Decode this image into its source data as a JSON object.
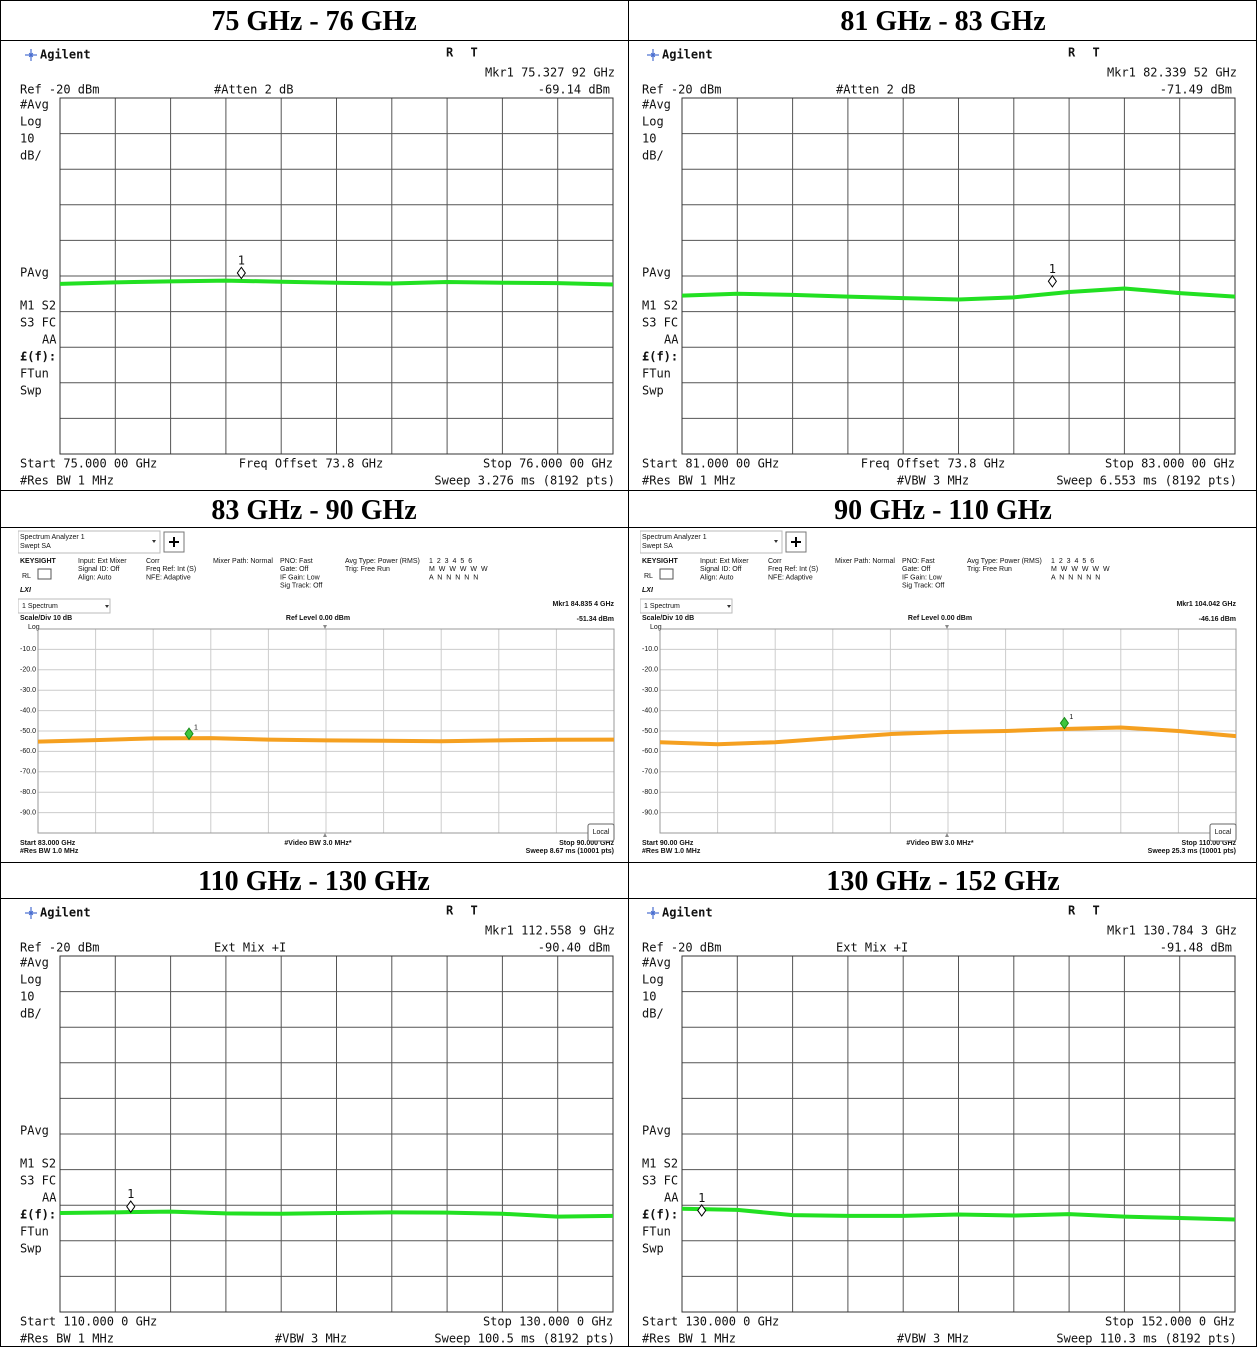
{
  "panels": [
    {
      "title": "75 GHz - 76 GHz",
      "style": "agilent",
      "header": {
        "brand": "Agilent",
        "status": "R T",
        "marker": "Mkr1 75.327 92 GHz",
        "ref": "Ref -20 dBm",
        "setting": "#Atten 2 dB",
        "marker_level": "-69.14 dBm"
      },
      "side_labels": [
        "#Avg",
        "Log",
        "10",
        "dB/",
        "PAvg",
        "M1 S2",
        "S3 FC",
        "AA",
        "£(f):",
        "FTun",
        "Swp"
      ],
      "footer": {
        "start": "Start 75.000 00 GHz",
        "center": "Freq Offset 73.8 GHz",
        "stop": "Stop 76.000 00 GHz",
        "rbw": "#Res BW 1 MHz",
        "sweep": "Sweep 3.276 ms (8192 pts)"
      },
      "xlim": [
        75,
        76
      ],
      "ylim": [
        -120,
        -20
      ],
      "yticks": [
        -30,
        -40,
        -50,
        -60,
        -70,
        -80,
        -90,
        -100,
        -110
      ],
      "trace_color": "#22e022",
      "trace": {
        "x": [
          75,
          75.1,
          75.2,
          75.3,
          75.4,
          75.5,
          75.6,
          75.7,
          75.8,
          75.9,
          76
        ],
        "values": [
          -72.2,
          -71.8,
          -71.5,
          -71.3,
          -71.6,
          -71.9,
          -72.1,
          -71.7,
          -71.9,
          -72.0,
          -72.4
        ]
      },
      "marker_point": {
        "x": 75.32792,
        "y": -69.14,
        "label": "1"
      }
    },
    {
      "title": "81 GHz - 83 GHz",
      "style": "agilent",
      "header": {
        "brand": "Agilent",
        "status": "R T",
        "marker": "Mkr1 82.339 52 GHz",
        "ref": "Ref -20 dBm",
        "setting": "#Atten 2 dB",
        "marker_level": "-71.49 dBm"
      },
      "side_labels": [
        "#Avg",
        "Log",
        "10",
        "dB/",
        "PAvg",
        "M1 S2",
        "S3 FC",
        "AA",
        "£(f):",
        "FTun",
        "Swp"
      ],
      "footer": {
        "start": "Start 81.000 00 GHz",
        "center": "Freq Offset 73.8 GHz",
        "stop": "Stop 83.000 00 GHz",
        "rbw": "#Res BW 1 MHz",
        "vbw": "#VBW 3 MHz",
        "sweep": "Sweep 6.553 ms (8192 pts)"
      },
      "xlim": [
        81,
        83
      ],
      "ylim": [
        -120,
        -20
      ],
      "yticks": [
        -30,
        -40,
        -50,
        -60,
        -70,
        -80,
        -90,
        -100,
        -110
      ],
      "trace_color": "#22e022",
      "trace": {
        "x": [
          81,
          81.2,
          81.4,
          81.6,
          81.8,
          82,
          82.2,
          82.4,
          82.6,
          82.8,
          83
        ],
        "values": [
          -75.5,
          -75.0,
          -75.3,
          -75.8,
          -76.2,
          -76.6,
          -76.0,
          -74.5,
          -73.5,
          -74.8,
          -75.8
        ]
      },
      "marker_point": {
        "x": 82.33952,
        "y": -71.49,
        "label": "1"
      }
    },
    {
      "title": "83 GHz - 90 GHz",
      "style": "keysight",
      "header": {
        "app": "Spectrum Analyzer 1",
        "mode": "Swept SA",
        "brand": "KEYSIGHT",
        "rl": "RL",
        "lxi": "LXI",
        "window": "1 Spectrum",
        "marker": "Mkr1  84.835 4 GHz",
        "marker_level": "-51.34 dBm",
        "scale": "Scale/Div 10 dB",
        "ref": "Ref Level 0.00 dBm",
        "log": "Log",
        "local": "Local"
      },
      "status_columns": [
        [
          "Input: Ext Mixer",
          "Signal ID: Off",
          "Align: Auto"
        ],
        [
          "Corr",
          "Freq Ref: Int (S)",
          "NFE: Adaptive"
        ],
        [
          "Mixer Path: Normal"
        ],
        [
          "PNO: Fast",
          "Gate: Off",
          "IF Gain: Low",
          "Sig Track: Off"
        ],
        [
          "Avg Type: Power (RMS)",
          "Trig: Free Run"
        ],
        [
          "1 2 3 4 5 6",
          "M W W W W W",
          "A N N N N N"
        ]
      ],
      "footer": {
        "start": "Start 83.000 GHz",
        "center": "#Video BW 3.0 MHz*",
        "stop": "Stop 90.000 GHz",
        "rbw": "#Res BW 1.0 MHz",
        "sweep": "Sweep 8.67 ms (10001 pts)"
      },
      "xlim": [
        83,
        90
      ],
      "ylim": [
        -100,
        0
      ],
      "yticks": [
        {
          "value": -10,
          "label": "-10.0"
        },
        {
          "value": -20,
          "label": "-20.0"
        },
        {
          "value": -30,
          "label": "-30.0"
        },
        {
          "value": -40,
          "label": "-40.0"
        },
        {
          "value": -50,
          "label": "-50.0"
        },
        {
          "value": -60,
          "label": "-60.0"
        },
        {
          "value": -70,
          "label": "-70.0"
        },
        {
          "value": -80,
          "label": "-80.0"
        },
        {
          "value": -90,
          "label": "-90.0"
        }
      ],
      "trace_color": "#f5a020",
      "trace": {
        "x": [
          83,
          83.7,
          84.4,
          85.1,
          85.8,
          86.5,
          87.2,
          87.9,
          88.6,
          89.3,
          90
        ],
        "values": [
          -55.2,
          -54.5,
          -53.6,
          -53.5,
          -54.2,
          -54.6,
          -54.8,
          -55.0,
          -54.6,
          -54.3,
          -54.2
        ]
      },
      "marker_point": {
        "x": 84.8354,
        "y": -51.34,
        "label": "1"
      }
    },
    {
      "title": "90 GHz - 110 GHz",
      "style": "keysight",
      "header": {
        "app": "Spectrum Analyzer 1",
        "mode": "Swept SA",
        "brand": "KEYSIGHT",
        "rl": "RL",
        "lxi": "LXI",
        "window": "1 Spectrum",
        "marker": "Mkr1  104.042 GHz",
        "marker_level": "-46.16 dBm",
        "scale": "Scale/Div 10 dB",
        "ref": "Ref Level 0.00 dBm",
        "log": "Log",
        "local": "Local"
      },
      "status_columns": [
        [
          "Input: Ext Mixer",
          "Signal ID: Off",
          "Align: Auto"
        ],
        [
          "Corr",
          "Freq Ref: Int (S)",
          "NFE: Adaptive"
        ],
        [
          "Mixer Path: Normal"
        ],
        [
          "PNO: Fast",
          "Gate: Off",
          "IF Gain: Low",
          "Sig Track: Off"
        ],
        [
          "Avg Type: Power (RMS)",
          "Trig: Free Run"
        ],
        [
          "1 2 3 4 5 6",
          "M W W W W W",
          "A N N N N N"
        ]
      ],
      "footer": {
        "start": "Start 90.00 GHz",
        "center": "#Video BW 3.0 MHz*",
        "stop": "Stop 110.00 GHz",
        "rbw": "#Res BW 1.0 MHz",
        "sweep": "Sweep 25.3 ms (10001 pts)"
      },
      "xlim": [
        90,
        110
      ],
      "ylim": [
        -100,
        0
      ],
      "yticks": [
        {
          "value": -10,
          "label": "-10.0"
        },
        {
          "value": -20,
          "label": "-20.0"
        },
        {
          "value": -30,
          "label": "-30.0"
        },
        {
          "value": -40,
          "label": "-40.0"
        },
        {
          "value": -50,
          "label": "-50.0"
        },
        {
          "value": -60,
          "label": "-60.0"
        },
        {
          "value": -70,
          "label": "-70.0"
        },
        {
          "value": -80,
          "label": "-80.0"
        },
        {
          "value": -90,
          "label": "-90.0"
        }
      ],
      "trace_color": "#f5a020",
      "trace": {
        "x": [
          90,
          92,
          94,
          96,
          98,
          100,
          102,
          104,
          106,
          108,
          110
        ],
        "values": [
          -55.5,
          -56.5,
          -55.5,
          -53.5,
          -51.5,
          -50.5,
          -50.0,
          -49.0,
          -48.3,
          -50.0,
          -52.5
        ]
      },
      "marker_point": {
        "x": 104.042,
        "y": -46.16,
        "label": "1"
      }
    },
    {
      "title": "110 GHz - 130 GHz",
      "style": "agilent",
      "header": {
        "brand": "Agilent",
        "status": "R T",
        "marker": "Mkr1 112.558 9 GHz",
        "ref": "Ref -20 dBm",
        "setting": "Ext Mix +I",
        "marker_level": "-90.40 dBm"
      },
      "side_labels": [
        "#Avg",
        "Log",
        "10",
        "dB/",
        "PAvg",
        "M1 S2",
        "S3 FC",
        "AA",
        "£(f):",
        "FTun",
        "Swp"
      ],
      "footer": {
        "start": "Start 110.000 0 GHz",
        "stop": "Stop 130.000 0 GHz",
        "rbw": "#Res BW 1 MHz",
        "vbw": "#VBW 3 MHz",
        "sweep": "Sweep 100.5 ms (8192 pts)"
      },
      "xlim": [
        110,
        130
      ],
      "ylim": [
        -120,
        -20
      ],
      "yticks": [
        -30,
        -40,
        -50,
        -60,
        -70,
        -80,
        -90,
        -100,
        -110
      ],
      "trace_color": "#22e022",
      "trace": {
        "x": [
          110,
          112,
          114,
          116,
          118,
          120,
          122,
          124,
          126,
          128,
          130
        ],
        "values": [
          -92.2,
          -92.0,
          -91.8,
          -92.3,
          -92.4,
          -92.2,
          -92.0,
          -92.1,
          -92.4,
          -93.2,
          -93.0
        ]
      },
      "marker_point": {
        "x": 112.5589,
        "y": -90.4,
        "label": "1"
      }
    },
    {
      "title": "130 GHz - 152 GHz",
      "style": "agilent",
      "header": {
        "brand": "Agilent",
        "status": "R T",
        "marker": "Mkr1 130.784 3 GHz",
        "ref": "Ref -20 dBm",
        "setting": "Ext Mix +I",
        "marker_level": "-91.48 dBm"
      },
      "side_labels": [
        "#Avg",
        "Log",
        "10",
        "dB/",
        "PAvg",
        "M1 S2",
        "S3 FC",
        "AA",
        "£(f):",
        "FTun",
        "Swp"
      ],
      "footer": {
        "start": "Start 130.000 0 GHz",
        "stop": "Stop 152.000 0 GHz",
        "rbw": "#Res BW 1 MHz",
        "vbw": "#VBW 3 MHz",
        "sweep": "Sweep 110.3 ms (8192 pts)"
      },
      "xlim": [
        130,
        152
      ],
      "ylim": [
        -120,
        -20
      ],
      "yticks": [
        -30,
        -40,
        -50,
        -60,
        -70,
        -80,
        -90,
        -100,
        -110
      ],
      "trace_color": "#22e022",
      "trace": {
        "x": [
          130,
          132.2,
          134.4,
          136.6,
          138.8,
          141,
          143.2,
          145.4,
          147.6,
          149.8,
          152
        ],
        "values": [
          -91.0,
          -91.3,
          -92.8,
          -93.0,
          -93.0,
          -92.6,
          -92.9,
          -92.5,
          -93.2,
          -93.6,
          -94.0
        ]
      },
      "marker_point": {
        "x": 130.7843,
        "y": -91.48,
        "label": "1"
      }
    }
  ]
}
